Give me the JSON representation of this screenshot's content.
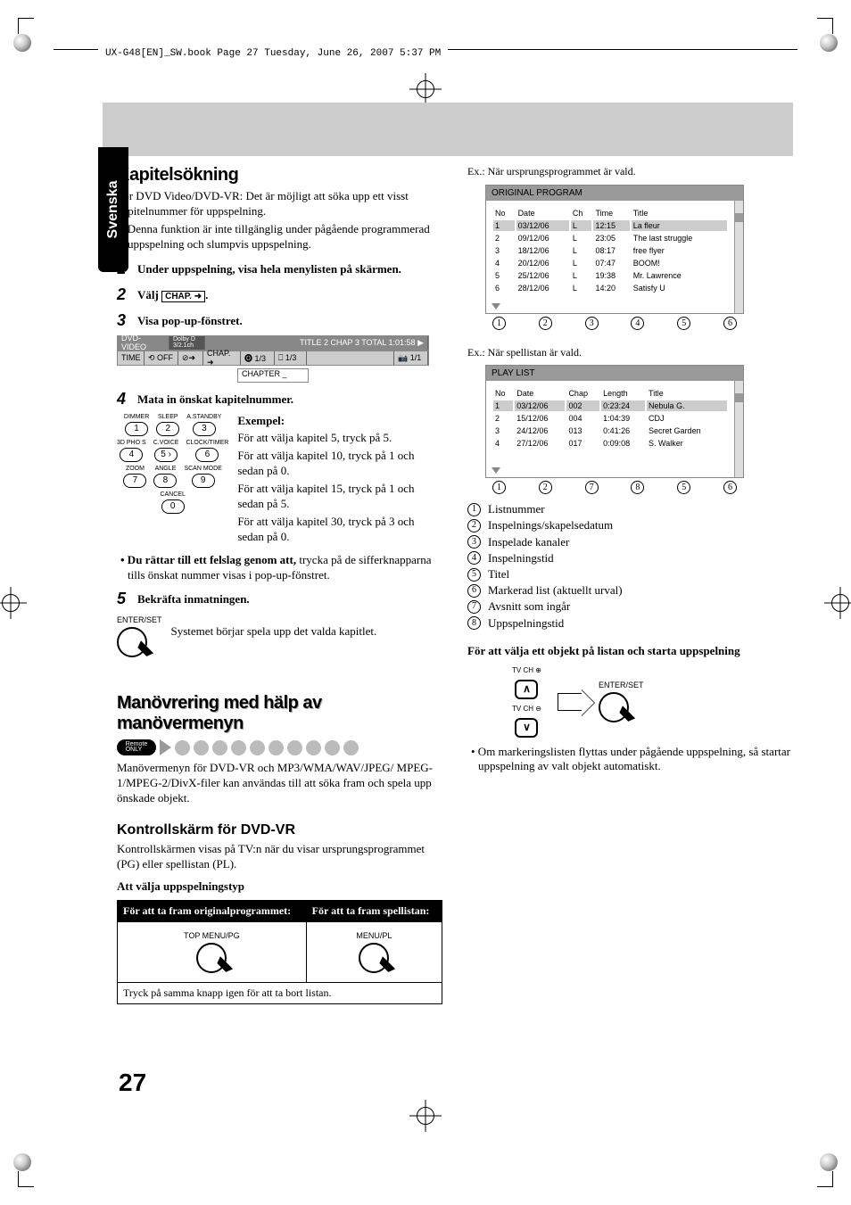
{
  "header": "UX-G48[EN]_SW.book  Page 27  Tuesday, June 26, 2007  5:37 PM",
  "lang_tab": "Svenska",
  "page_number": "27",
  "left": {
    "h_search": "Kapitelsökning",
    "p1": "För DVD Video/DVD-VR: Det är möjligt att söka upp ett visst kapitelnummer för uppspelning.",
    "b1": "• Denna funktion är inte tillgänglig under pågående programmerad uppspelning och slumpvis uppspelning.",
    "step1": "Under uppspelning, visa hela menylisten på skärmen.",
    "step2_pre": "Välj ",
    "step2_box": "CHAP. ➜",
    "step2_post": ".",
    "step3": "Visa pop-up-fönstret.",
    "dvd": {
      "label": "DVD-VIDEO",
      "dolby": "Dolby D\n3/2.1ch",
      "title_chap": "TITLE  2  CHAP  3  TOTAL  1:01:58  ▶",
      "time": "TIME",
      "off": "⟲ OFF",
      "clock": "⊘➜",
      "chap": "CHAP. ➜",
      "disc": "🅞 1/3",
      "sub": "⎕ 1/3",
      "ang": "📷 1/1",
      "input": "CHAPTER    _"
    },
    "step4": "Mata in önskat kapitelnummer.",
    "keypad_labels": [
      [
        "DIMMER",
        "SLEEP",
        "A.STANDBY"
      ],
      [
        "3D PHO S",
        "C.VOICE",
        "CLOCK/TIMER"
      ],
      [
        "ZOOM",
        "ANGLE",
        "SCAN MODE"
      ],
      [
        "",
        "CANCEL",
        ""
      ]
    ],
    "keypad_nums": [
      [
        "1",
        "2",
        "3"
      ],
      [
        "4",
        "5 ›",
        "6"
      ],
      [
        "7",
        "8",
        "9"
      ],
      [
        "",
        "0",
        ""
      ]
    ],
    "exempel_h": "Exempel:",
    "ex1": "För att välja kapitel 5, tryck på 5.",
    "ex2": "För att välja kapitel 10, tryck på 1 och sedan på 0.",
    "ex3": "För att välja kapitel 15, tryck på 1 och sedan på 5.",
    "ex4": "För att välja kapitel 30, tryck på 3 och sedan på 0.",
    "fix_bullet": "• Du rättar till ett felslag genom att, trycka på de sifferknapparna tills önskat nummer visas i pop-up-fönstret.",
    "step5": "Bekräfta inmatningen.",
    "enter_lbl": "ENTER/SET",
    "enter_text": "Systemet börjar spela upp det valda kapitlet.",
    "h_maneuver": "Manövrering med hälp av manövermenyn",
    "remote_badge": "Remote\nONLY",
    "man_p": "Manövermenyn för DVD-VR och MP3/WMA/WAV/JPEG/ MPEG-1/MPEG-2/DivX-filer kan användas till att söka fram och spela upp önskade objekt.",
    "h_kontroll": "Kontrollskärm för DVD-VR",
    "kon_p": "Kontrollskärmen visas på TV:n när du visar ursprungsprogrammet (PG) eller spellistan (PL).",
    "att_valja": "Att välja uppspelningstyp",
    "th1": "För att ta fram originalprogrammet:",
    "th2": "För att ta fram spellistan:",
    "btn1": "TOP MENU/PG",
    "btn2": "MENU/PL",
    "foot_row": "Tryck på samma knapp igen för att ta bort listan."
  },
  "right": {
    "ex1_caption": "Ex.: När ursprungsprogrammet är vald.",
    "orig": {
      "title": "ORIGINAL PROGRAM",
      "headers": [
        "No",
        "Date",
        "Ch",
        "Time",
        "Title"
      ],
      "rows": [
        [
          "1",
          "03/12/06",
          "L",
          "12:15",
          "La fleur"
        ],
        [
          "2",
          "09/12/06",
          "L",
          "23:05",
          "The last struggle"
        ],
        [
          "3",
          "18/12/06",
          "L",
          "08:17",
          "free flyer"
        ],
        [
          "4",
          "20/12/06",
          "L",
          "07:47",
          "BOOM!"
        ],
        [
          "5",
          "25/12/06",
          "L",
          "19:38",
          "Mr. Lawrence"
        ],
        [
          "6",
          "28/12/06",
          "L",
          "14:20",
          "Satisfy U"
        ]
      ],
      "callouts": [
        "1",
        "2",
        "3",
        "4",
        "5",
        "6"
      ]
    },
    "ex2_caption": "Ex.: När spellistan är vald.",
    "play": {
      "title": "PLAY LIST",
      "headers": [
        "No",
        "Date",
        "Chap",
        "Length",
        "Title"
      ],
      "rows": [
        [
          "1",
          "03/12/06",
          "002",
          "0:23:24",
          "Nebula G."
        ],
        [
          "2",
          "15/12/06",
          "004",
          "1:04:39",
          "CDJ"
        ],
        [
          "3",
          "24/12/06",
          "013",
          "0:41:26",
          "Secret Garden"
        ],
        [
          "4",
          "27/12/06",
          "017",
          "0:09:08",
          "S. Walker"
        ]
      ],
      "callouts": [
        "1",
        "2",
        "7",
        "8",
        "5",
        "6"
      ]
    },
    "legend": [
      "Listnummer",
      "Inspelnings/skapelsedatum",
      "Inspelade kanaler",
      "Inspelningstid",
      "Titel",
      "Markerad list (aktuellt urval)",
      "Avsnitt som ingår",
      "Uppspelningstid"
    ],
    "select_h": "För att välja ett objekt på listan och starta uppspelning",
    "tv_up": "TV CH ⊕",
    "tv_dn": "TV CH ⊖",
    "enter_lbl": "ENTER/SET",
    "last_b": "• Om markeringslisten flyttas under pågående uppspelning, så startar uppspelning av valt objekt automatiskt."
  }
}
